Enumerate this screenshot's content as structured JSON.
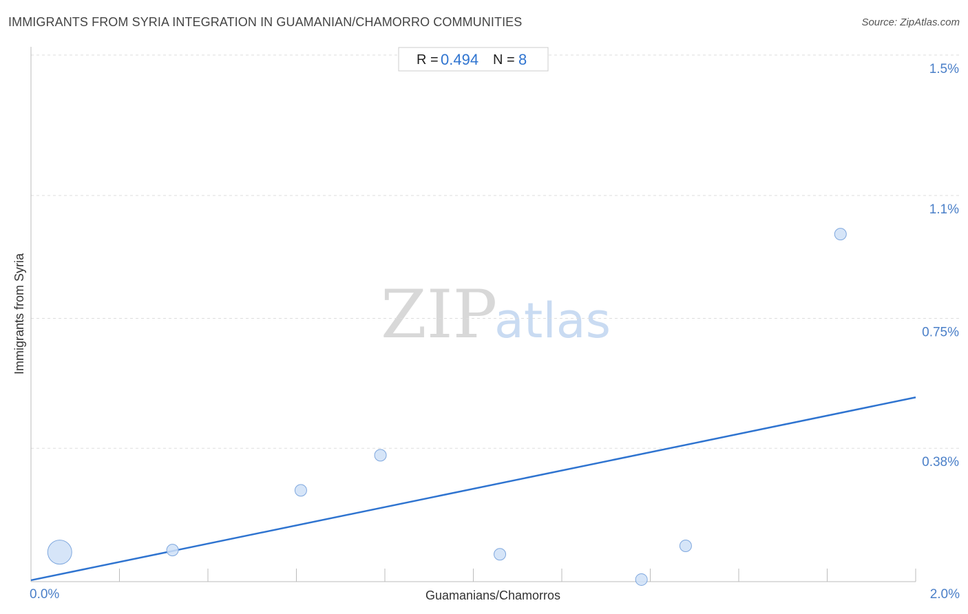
{
  "header": {
    "title": "IMMIGRANTS FROM SYRIA INTEGRATION IN GUAMANIAN/CHAMORRO COMMUNITIES",
    "source": "Source: ZipAtlas.com"
  },
  "stats": {
    "r_label": "R =",
    "r_value": "0.494",
    "n_label": "N =",
    "n_value": "8"
  },
  "watermark": {
    "zip": "ZIP",
    "atlas": "atlas"
  },
  "colors": {
    "point_fill": "#cfe0f7",
    "point_stroke": "#7ea7de",
    "trend": "#2f74d0",
    "tick_text": "#4a7fc8"
  },
  "chart_data": {
    "type": "scatter",
    "title": "IMMIGRANTS FROM SYRIA INTEGRATION IN GUAMANIAN/CHAMORRO COMMUNITIES",
    "xlabel": "Guamanians/Chamorros",
    "ylabel": "Immigrants from Syria",
    "xlim": [
      0,
      2.0
    ],
    "ylim": [
      0,
      1.5
    ],
    "x_tick_labels": [
      "0.0%",
      "2.0%"
    ],
    "y_ticks": [
      {
        "value": 1.5,
        "label": "1.5%"
      },
      {
        "value": 1.1,
        "label": "1.1%"
      },
      {
        "value": 0.75,
        "label": "0.75%"
      },
      {
        "value": 0.38,
        "label": "0.38%"
      }
    ],
    "grid": true,
    "points": [
      {
        "x": 0.065,
        "y": 0.084,
        "weight": 3
      },
      {
        "x": 0.32,
        "y": 0.09,
        "weight": 1
      },
      {
        "x": 0.61,
        "y": 0.26,
        "weight": 1
      },
      {
        "x": 0.79,
        "y": 0.36,
        "weight": 1
      },
      {
        "x": 1.06,
        "y": 0.078,
        "weight": 1
      },
      {
        "x": 1.38,
        "y": 0.006,
        "weight": 1
      },
      {
        "x": 1.48,
        "y": 0.102,
        "weight": 1
      },
      {
        "x": 1.83,
        "y": 0.99,
        "weight": 1
      }
    ],
    "trendline": {
      "x": [
        0,
        2.0
      ],
      "y": [
        0.004,
        0.525
      ]
    }
  }
}
